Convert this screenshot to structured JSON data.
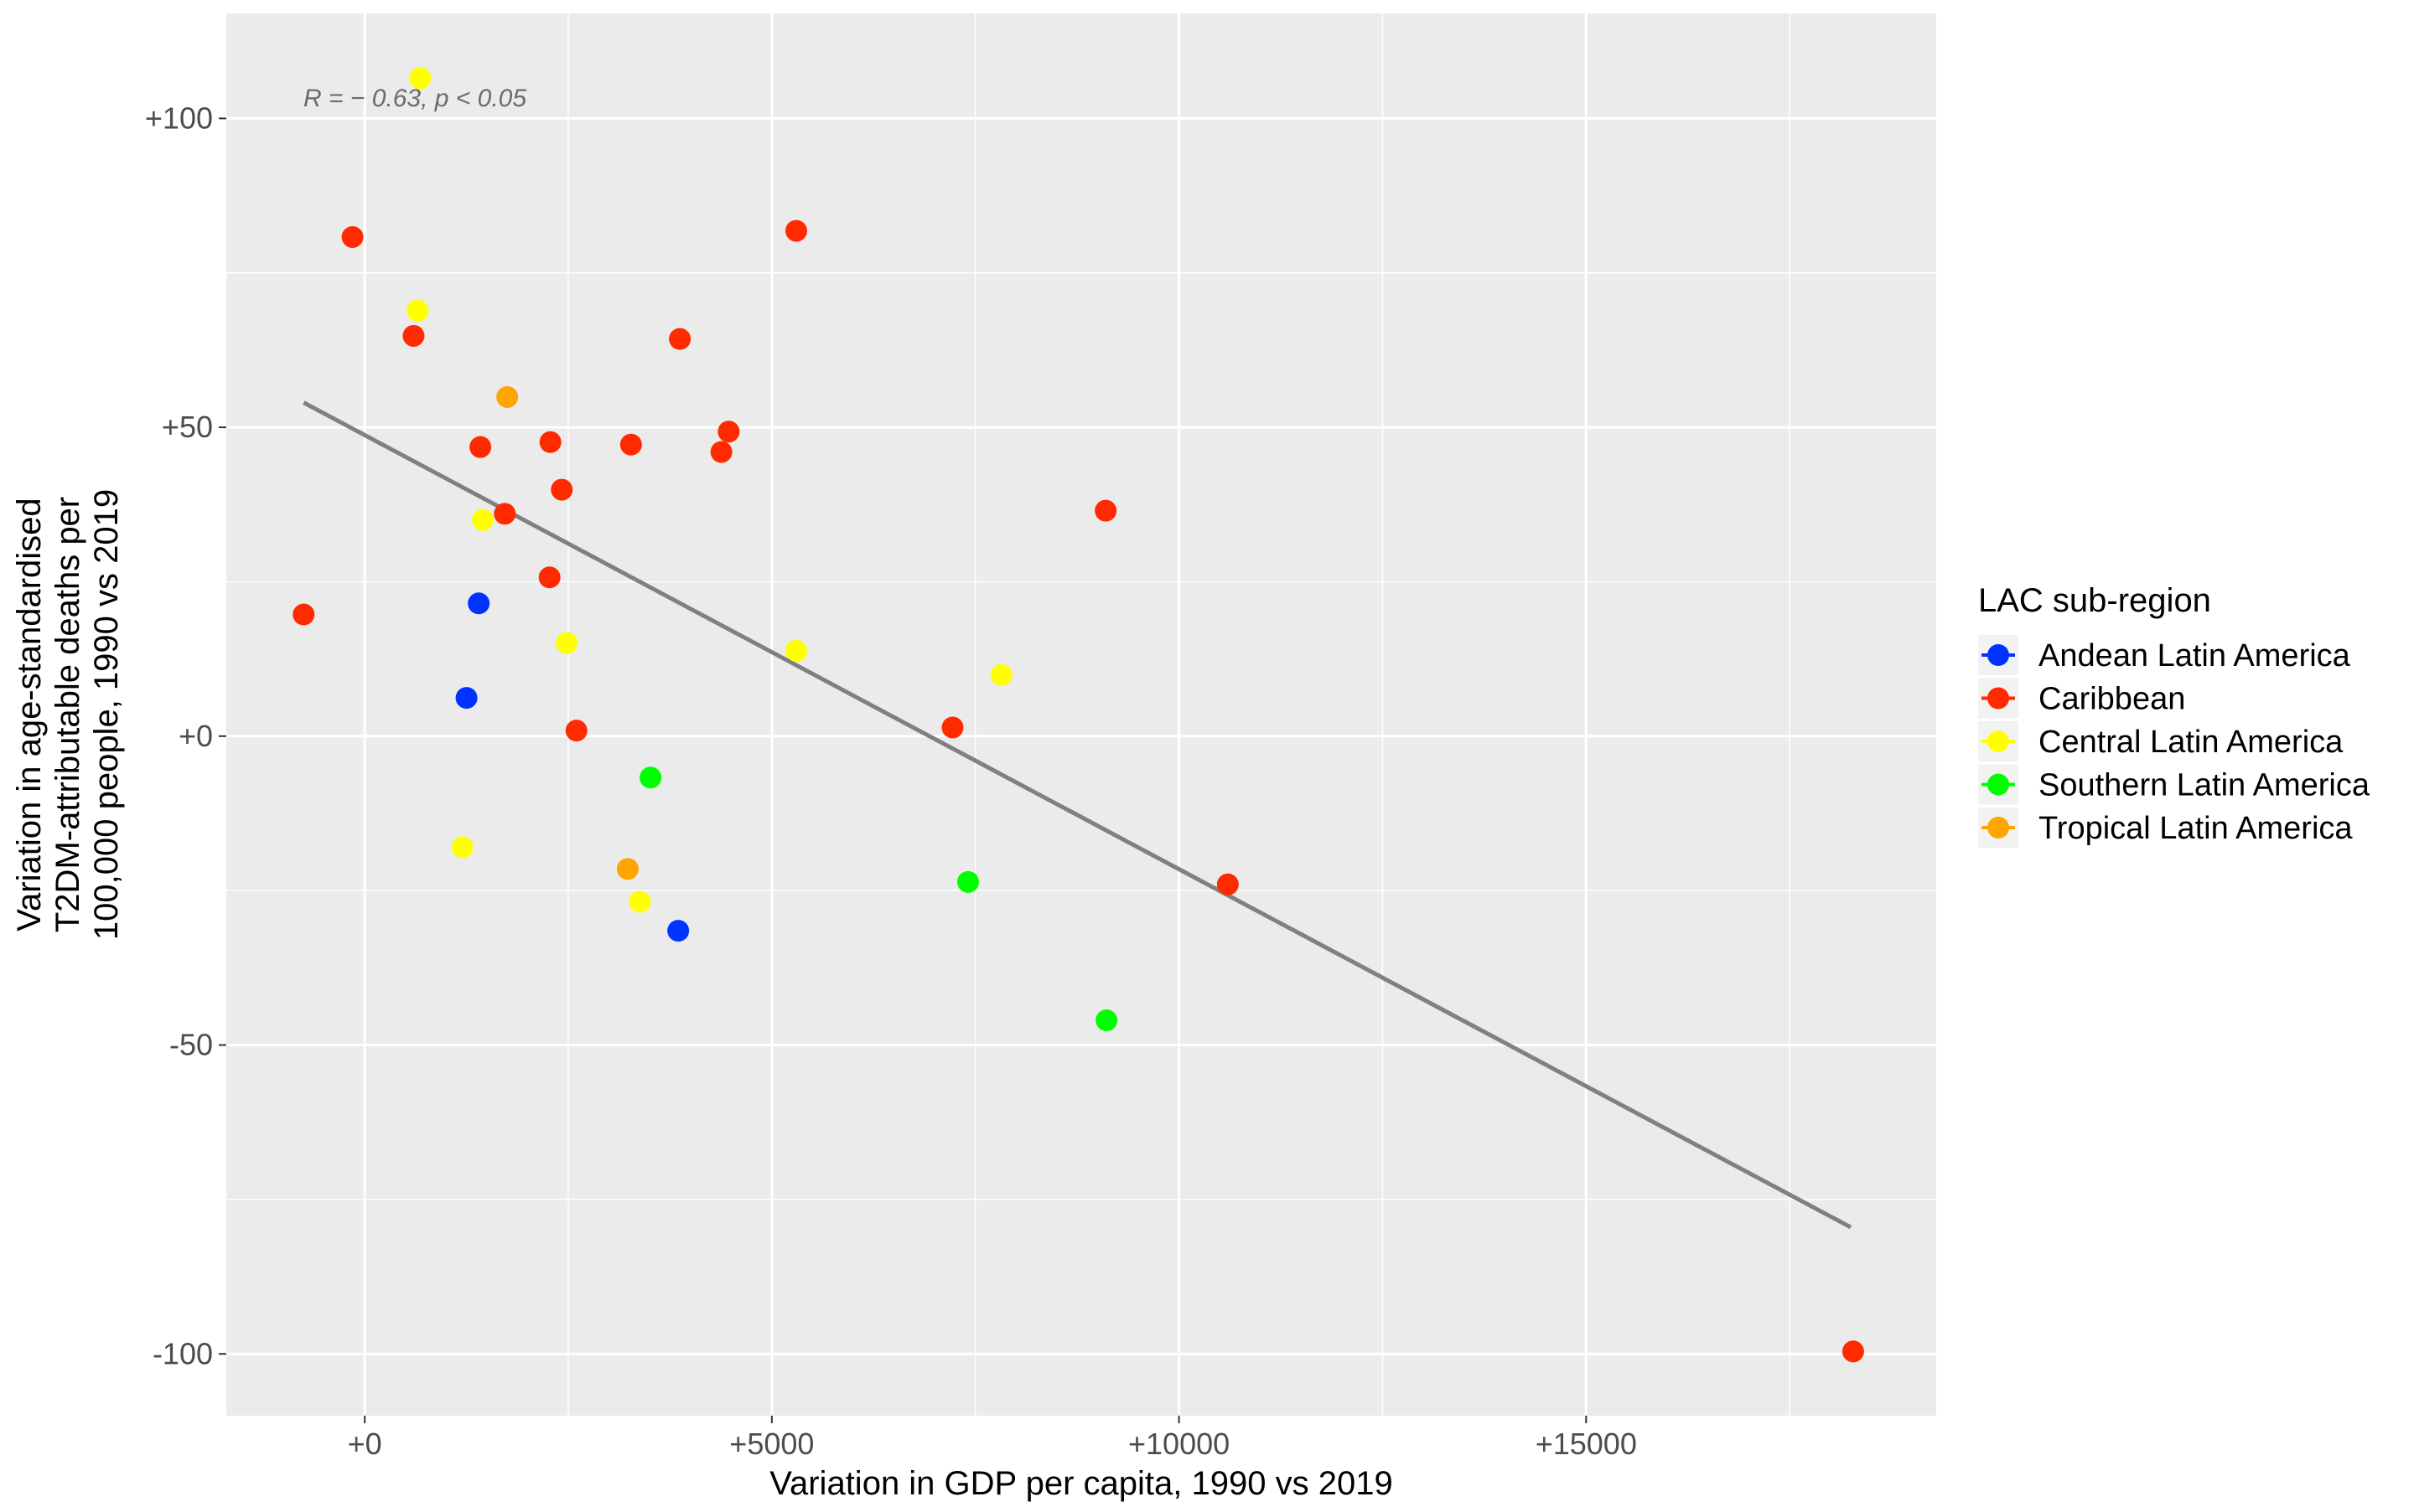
{
  "chart_data": {
    "type": "scatter",
    "title": "",
    "xlabel": "Variation in GDP per capita, 1990 vs 2019",
    "ylabel_lines": [
      "Variation in age-standardised",
      "T2DM-attributable deaths per",
      "100,000 people, 1990 vs 2019"
    ],
    "xlim": [
      -1700,
      19300
    ],
    "ylim": [
      -110,
      117
    ],
    "x_ticks": [
      {
        "value": 0,
        "label": "+0"
      },
      {
        "value": 5000,
        "label": "+5000"
      },
      {
        "value": 10000,
        "label": "+10000"
      },
      {
        "value": 15000,
        "label": "+15000"
      }
    ],
    "y_ticks": [
      {
        "value": 100,
        "label": "+100"
      },
      {
        "value": 50,
        "label": "+50"
      },
      {
        "value": 0,
        "label": "+0"
      },
      {
        "value": -50,
        "label": "-50"
      },
      {
        "value": -100,
        "label": "-100"
      }
    ],
    "annotation": "R = − 0.63, p < 0.05",
    "grid": true,
    "legend_title": "LAC sub-region",
    "legend_position": "right",
    "regression_line": {
      "x": [
        -750,
        18250
      ],
      "y": [
        54,
        -79.5
      ],
      "color": "#808080"
    },
    "series": [
      {
        "name": "Andean Latin America",
        "color": "#0033ff",
        "points": [
          [
            1400,
            21.5
          ],
          [
            1250,
            6.2
          ],
          [
            3850,
            -31.5
          ]
        ]
      },
      {
        "name": "Caribbean",
        "color": "#ff2a00",
        "points": [
          [
            -150,
            80.8
          ],
          [
            5300,
            81.8
          ],
          [
            600,
            64.8
          ],
          [
            3870,
            64.3
          ],
          [
            4470,
            49.3
          ],
          [
            2280,
            47.6
          ],
          [
            1420,
            46.8
          ],
          [
            3270,
            47.2
          ],
          [
            4380,
            46.0
          ],
          [
            2420,
            39.9
          ],
          [
            1720,
            36.0
          ],
          [
            9100,
            36.5
          ],
          [
            2270,
            25.7
          ],
          [
            -750,
            19.7
          ],
          [
            2600,
            0.9
          ],
          [
            7220,
            1.4
          ],
          [
            10600,
            -24.0
          ],
          [
            18280,
            -99.6
          ]
        ]
      },
      {
        "name": "Central Latin America",
        "color": "#ffff00",
        "points": [
          [
            680,
            106.5
          ],
          [
            650,
            68.9
          ],
          [
            1450,
            35.0
          ],
          [
            2480,
            15.1
          ],
          [
            5300,
            13.8
          ],
          [
            7820,
            9.9
          ],
          [
            1200,
            -18.0
          ],
          [
            3380,
            -26.8
          ]
        ]
      },
      {
        "name": "Southern Latin America",
        "color": "#00ff00",
        "points": [
          [
            3510,
            -6.7
          ],
          [
            7410,
            -23.6
          ],
          [
            9110,
            -46.0
          ]
        ]
      },
      {
        "name": "Tropical Latin America",
        "color": "#ffa500",
        "points": [
          [
            1750,
            54.9
          ],
          [
            3230,
            -21.5
          ]
        ]
      }
    ]
  }
}
